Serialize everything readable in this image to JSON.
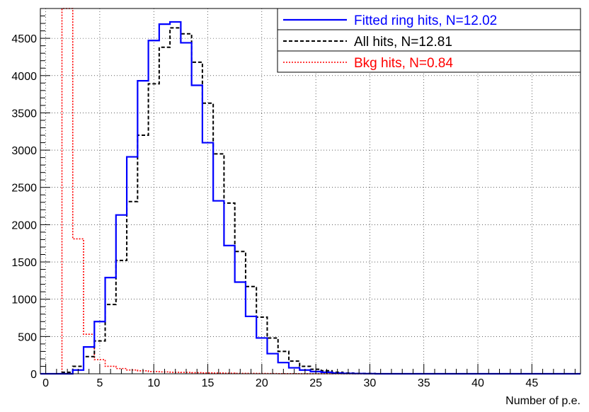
{
  "chart_data": {
    "type": "histogram",
    "xlabel": "Number of p.e.",
    "ylabel": "",
    "xlim": [
      -0.5,
      49.5
    ],
    "ylim": [
      0,
      4900
    ],
    "grid": true,
    "bin_width": 1,
    "bin_start": -0.5,
    "x_ticks": [
      0,
      5,
      10,
      15,
      20,
      25,
      30,
      35,
      40,
      45
    ],
    "y_ticks": [
      0,
      500,
      1000,
      1500,
      2000,
      2500,
      3000,
      3500,
      4000,
      4500
    ],
    "legend": {
      "placement": "top-right"
    },
    "series": [
      {
        "name": "Fitted ring hits, N=12.02",
        "color": "#0000ff",
        "style": "solid",
        "values": [
          0,
          0,
          0,
          50,
          360,
          700,
          1290,
          2130,
          2910,
          3930,
          4470,
          4690,
          4720,
          4440,
          3870,
          3100,
          2320,
          1720,
          1230,
          770,
          480,
          270,
          150,
          80,
          50,
          30,
          20,
          10,
          5,
          3,
          2,
          0,
          0,
          0,
          0,
          0,
          0,
          0,
          0,
          0,
          0,
          0,
          0,
          0,
          0,
          0,
          0,
          0,
          0,
          0
        ]
      },
      {
        "name": "All hits, N=12.81",
        "color": "#000000",
        "style": "dashed",
        "values": [
          0,
          0,
          20,
          100,
          230,
          440,
          930,
          1520,
          2310,
          3200,
          3890,
          4380,
          4640,
          4560,
          4180,
          3630,
          2950,
          2290,
          1640,
          1170,
          760,
          480,
          300,
          170,
          100,
          60,
          40,
          20,
          10,
          5,
          3,
          0,
          0,
          0,
          0,
          0,
          0,
          0,
          0,
          0,
          0,
          0,
          0,
          0,
          0,
          0,
          0,
          0,
          0,
          0
        ]
      },
      {
        "name": "Bkg hits, N=0.84",
        "color": "#ff0000",
        "style": "dotted",
        "values": [
          0,
          0,
          4900,
          1810,
          530,
          190,
          100,
          70,
          50,
          40,
          30,
          25,
          20,
          18,
          15,
          12,
          10,
          8,
          6,
          5,
          4,
          3,
          2,
          2,
          1,
          1,
          1,
          0,
          0,
          0,
          0,
          0,
          0,
          0,
          0,
          0,
          0,
          0,
          0,
          0,
          0,
          0,
          0,
          0,
          0,
          0,
          0,
          0,
          0,
          0
        ]
      }
    ]
  }
}
